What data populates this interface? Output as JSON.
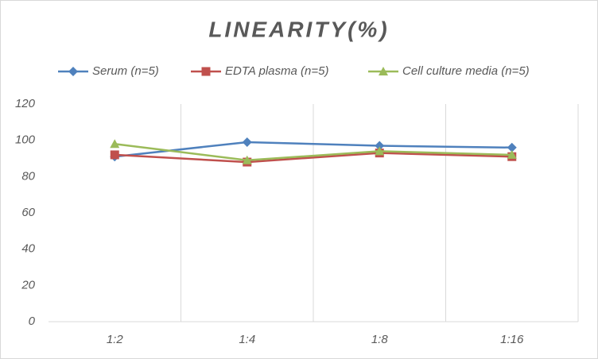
{
  "chart_data": {
    "type": "line",
    "title": "LINEARITY(%)",
    "categories": [
      "1:2",
      "1:4",
      "1:8",
      "1:16"
    ],
    "series": [
      {
        "name": "Serum (n=5)",
        "color": "#4f81bd",
        "marker": "diamond",
        "values": [
          91,
          99,
          97,
          96
        ]
      },
      {
        "name": "EDTA plasma (n=5)",
        "color": "#c0504d",
        "marker": "square",
        "values": [
          92,
          88,
          93,
          91
        ]
      },
      {
        "name": "Cell culture media (n=5)",
        "color": "#9bbb59",
        "marker": "triangle",
        "values": [
          98,
          89,
          94,
          92
        ]
      }
    ],
    "ylim": [
      0,
      120
    ],
    "yticks": [
      0,
      20,
      40,
      60,
      80,
      100,
      120
    ],
    "legend": "top"
  }
}
